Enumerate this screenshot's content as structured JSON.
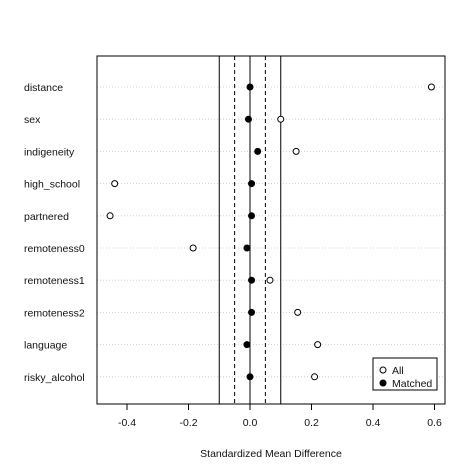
{
  "chart_data": {
    "type": "scatter",
    "title": "",
    "xlabel": "Standardized Mean Difference",
    "ylabel": "",
    "xlim": [
      -0.5,
      0.62
    ],
    "xticks": [
      -0.4,
      -0.2,
      0.0,
      0.2,
      0.4,
      0.6
    ],
    "xtick_labels": [
      "-0.4",
      "-0.2",
      "0.0",
      "0.2",
      "0.4",
      "0.6"
    ],
    "categories": [
      "distance",
      "sex",
      "indigeneity",
      "high_school",
      "partnered",
      "remoteness0",
      "remoteness1",
      "remoteness2",
      "language",
      "risky_alcohol"
    ],
    "series": [
      {
        "name": "All",
        "marker": "open-circle",
        "values": [
          0.59,
          0.1,
          0.15,
          -0.44,
          -0.455,
          -0.185,
          0.065,
          0.155,
          0.22,
          0.21
        ]
      },
      {
        "name": "Matched",
        "marker": "filled-circle",
        "values": [
          0.0,
          -0.005,
          0.025,
          0.005,
          0.005,
          -0.01,
          0.005,
          0.005,
          -0.01,
          0.0
        ]
      }
    ],
    "vlines": {
      "solid": [
        -0.1,
        0.0,
        0.1
      ],
      "dashed": [
        -0.05,
        0.05
      ]
    },
    "grid": "horizontal dotted",
    "legend_position": "bottom-right"
  }
}
